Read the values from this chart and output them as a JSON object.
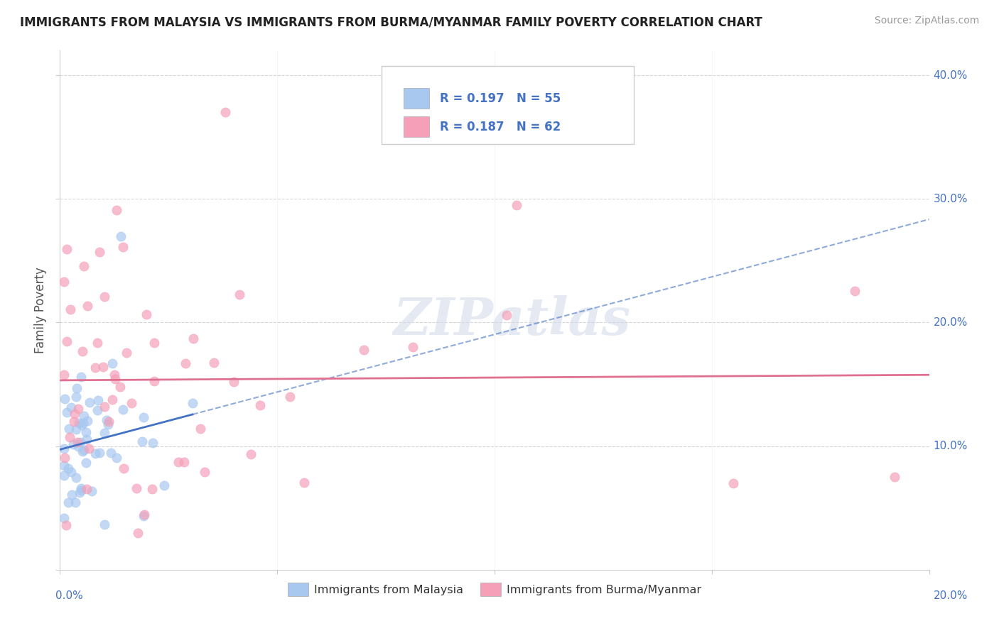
{
  "title": "IMMIGRANTS FROM MALAYSIA VS IMMIGRANTS FROM BURMA/MYANMAR FAMILY POVERTY CORRELATION CHART",
  "source": "Source: ZipAtlas.com",
  "ylabel": "Family Poverty",
  "xlim": [
    0.0,
    0.2
  ],
  "ylim": [
    0.0,
    0.42
  ],
  "legend_label1": "Immigrants from Malaysia",
  "legend_label2": "Immigrants from Burma/Myanmar",
  "R1": 0.197,
  "N1": 55,
  "R2": 0.187,
  "N2": 62,
  "color1": "#a8c8f0",
  "color2": "#f5a0b8",
  "trendline1_color": "#4472c4",
  "trendline2_color": "#e07090",
  "label_color": "#4472c4",
  "watermark_color": "#d0d8e8",
  "grid_color": "#cccccc"
}
